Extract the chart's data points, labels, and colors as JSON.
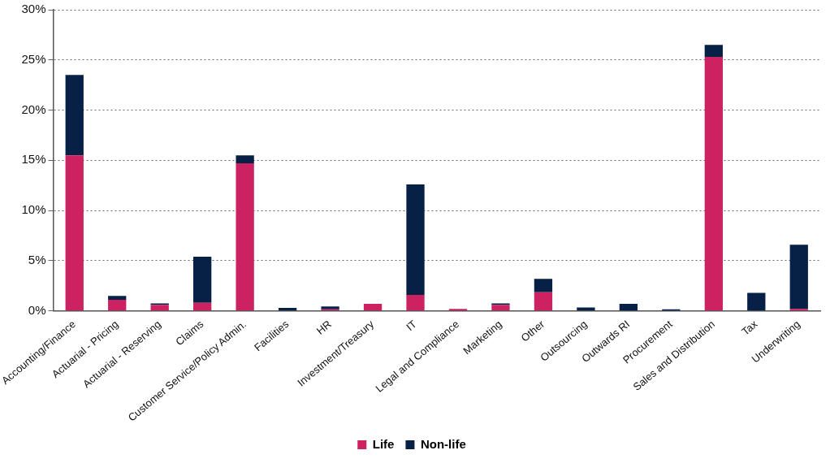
{
  "chart_data": {
    "type": "bar",
    "stacked": true,
    "categories": [
      "Accounting/Finance",
      "Actuarial - Pricing",
      "Actuarial - Reserving",
      "Claims",
      "Customer Service/Policy Admin.",
      "Facilities",
      "HR",
      "Investment/Treasury",
      "IT",
      "Legal and Compliance",
      "Marketing",
      "Other",
      "Outsourcing",
      "Outwards RI",
      "Procurement",
      "Sales and Distribution",
      "Tax",
      "Underwriting"
    ],
    "series": [
      {
        "name": "Life",
        "color": "#cc2262",
        "values": [
          15.5,
          1.1,
          0.6,
          0.8,
          14.7,
          0,
          0.15,
          0.7,
          1.6,
          0.2,
          0.6,
          1.85,
          0,
          0,
          0,
          25.3,
          0,
          0.2
        ]
      },
      {
        "name": "Non-life",
        "color": "#062046",
        "values": [
          8.0,
          0.4,
          0.15,
          4.6,
          0.8,
          0.3,
          0.3,
          0,
          11.0,
          0,
          0.15,
          1.35,
          0.35,
          0.7,
          0.15,
          1.2,
          1.8,
          6.4
        ]
      }
    ],
    "ylim": [
      0,
      30
    ],
    "yticks": [
      {
        "value": 0,
        "label": "0%"
      },
      {
        "value": 5,
        "label": "5%"
      },
      {
        "value": 10,
        "label": "10%"
      },
      {
        "value": 15,
        "label": "15%"
      },
      {
        "value": 20,
        "label": "20%"
      },
      {
        "value": 25,
        "label": "25%"
      },
      {
        "value": 30,
        "label": "30%"
      }
    ],
    "grid": "y",
    "legend": "bottom"
  }
}
